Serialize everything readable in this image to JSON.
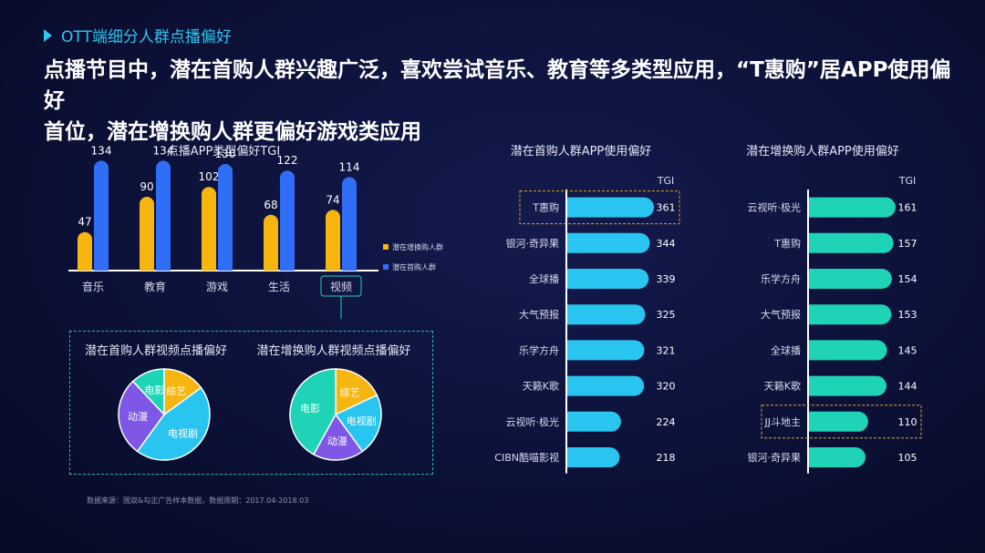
{
  "section": {
    "title": "OTT端细分人群点播偏好"
  },
  "headline": {
    "line1": "点播节目中，潜在首购人群兴趣广泛，喜欢尝试音乐、教育等多类型应用，“T惠购”居APP使用偏好",
    "line2": "首位，潜在增换购人群更偏好游戏类应用"
  },
  "colors": {
    "yellow": "#f7b50f",
    "blue": "#2f6ef5",
    "cyan": "#29c4f0",
    "teal": "#1fd3b6",
    "purple": "#7f57e7",
    "highlight_border": "#e0a526"
  },
  "chart_data": [
    {
      "type": "bar",
      "title": "点播APP类型偏好TGI",
      "categories": [
        "音乐",
        "教育",
        "游戏",
        "生活",
        "视频"
      ],
      "highlight_category": "视频",
      "series": [
        {
          "name": "潜在增换购人群",
          "color": "#f7b50f",
          "values": [
            47,
            90,
            102,
            68,
            74
          ]
        },
        {
          "name": "潜在首购人群",
          "color": "#2f6ef5",
          "values": [
            134,
            134,
            130,
            122,
            114
          ]
        }
      ],
      "ylim": [
        0,
        150
      ]
    },
    {
      "type": "bar",
      "orientation": "horizontal",
      "title": "潜在首购人群APP使用偏好",
      "value_header": "TGI",
      "categories": [
        "T惠购",
        "银河·奇异果",
        "全球播",
        "大气预报",
        "乐学方舟",
        "天籁K歌",
        "云视听·极光",
        "CIBN酷喵影视"
      ],
      "values": [
        361,
        344,
        339,
        325,
        321,
        320,
        224,
        218
      ],
      "highlight_category": "T惠购",
      "color": "#29c4f0"
    },
    {
      "type": "bar",
      "orientation": "horizontal",
      "title": "潜在增换购人群APP使用偏好",
      "value_header": "TGI",
      "categories": [
        "云视听·极光",
        "T惠购",
        "乐学方舟",
        "大气预报",
        "全球播",
        "天籁K歌",
        "JJ斗地主",
        "银河·奇异果"
      ],
      "values": [
        161,
        157,
        154,
        153,
        145,
        144,
        110,
        105
      ],
      "highlight_category": "JJ斗地主",
      "color": "#1fd3b6"
    },
    {
      "type": "pie",
      "title": "潜在首购人群视频点播偏好",
      "labels": [
        "综艺",
        "电视剧",
        "动漫",
        "电影"
      ],
      "values": [
        15,
        45,
        28,
        12
      ],
      "colors": [
        "#f7b50f",
        "#29c4f0",
        "#7f57e7",
        "#1fd3b6"
      ]
    },
    {
      "type": "pie",
      "title": "潜在增换购人群视频点播偏好",
      "labels": [
        "综艺",
        "电视剧",
        "动漫",
        "电影"
      ],
      "values": [
        18,
        22,
        18,
        42
      ],
      "colors": [
        "#f7b50f",
        "#29c4f0",
        "#7f57e7",
        "#1fd3b6"
      ]
    }
  ],
  "source": "数据来源：国双&勾正广告样本数据，数据周期：2017.04-2018.03"
}
